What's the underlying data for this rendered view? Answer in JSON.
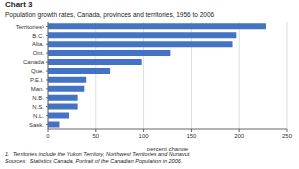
{
  "chart_data": {
    "type": "bar",
    "orientation": "horizontal",
    "title": "Chart 3",
    "subtitle": "Population growth rates, Canada, provinces and territories, 1956 to 2006",
    "categories": [
      "Territories¹",
      "B.C.",
      "Alta.",
      "Ont.",
      "Canada",
      "Que.",
      "P.E.I.",
      "Man.",
      "N.B.",
      "N.S.",
      "N.L.",
      "Sask."
    ],
    "values": [
      228,
      197,
      193,
      128,
      98,
      65,
      40,
      38,
      31,
      31,
      22,
      12
    ],
    "color": "#4472C4",
    "xlabel": "percent change",
    "xlim": [
      0,
      250
    ],
    "xticks": [
      0,
      50,
      100,
      150,
      200,
      250
    ],
    "grid": true,
    "annotations": [
      "1.  Territories include the Yukon Territory, Northwest Territories and Nunavut.",
      "Sources:  Statistics Canada, Portrait of the Canadian Population in 2006."
    ]
  }
}
